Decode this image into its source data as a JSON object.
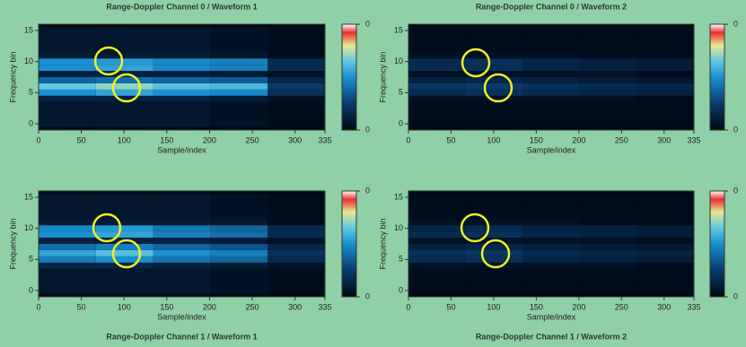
{
  "chart_data": [
    {
      "type": "heatmap",
      "title": "Range-Doppler Channel 0 / Waveform 1",
      "xlabel": "Sample/index",
      "ylabel": "Frequency bin",
      "xlim": [
        0,
        335
      ],
      "xticks": [
        0,
        50,
        100,
        150,
        200,
        250,
        300,
        335
      ],
      "ylim": [
        -1,
        16
      ],
      "yticks": [
        0,
        5,
        10,
        15
      ],
      "xbins": [
        0,
        67,
        134,
        201,
        268,
        335
      ],
      "y": [
        0,
        1,
        2,
        3,
        4,
        5,
        6,
        7,
        8,
        9,
        10,
        11,
        12,
        13,
        14,
        15
      ],
      "z": [
        [
          0.03,
          0.03,
          0.03,
          0.02,
          0.01
        ],
        [
          0.03,
          0.03,
          0.03,
          0.02,
          0.01
        ],
        [
          0.03,
          0.03,
          0.03,
          0.02,
          0.01
        ],
        [
          0.03,
          0.03,
          0.03,
          0.02,
          0.01
        ],
        [
          0.05,
          0.05,
          0.05,
          0.04,
          0.02
        ],
        [
          0.2,
          0.22,
          0.2,
          0.19,
          0.08
        ],
        [
          0.26,
          0.28,
          0.25,
          0.24,
          0.1
        ],
        [
          0.15,
          0.16,
          0.15,
          0.14,
          0.06
        ],
        [
          0.05,
          0.05,
          0.05,
          0.04,
          0.02
        ],
        [
          0.2,
          0.22,
          0.19,
          0.18,
          0.07
        ],
        [
          0.2,
          0.21,
          0.19,
          0.18,
          0.07
        ],
        [
          0.04,
          0.04,
          0.04,
          0.03,
          0.01
        ],
        [
          0.03,
          0.03,
          0.03,
          0.02,
          0.01
        ],
        [
          0.03,
          0.03,
          0.03,
          0.02,
          0.01
        ],
        [
          0.03,
          0.03,
          0.03,
          0.02,
          0.01
        ],
        [
          0.03,
          0.03,
          0.03,
          0.02,
          0.01
        ]
      ],
      "zlim": [
        0,
        0.4
      ],
      "zticks": [
        0,
        {
          "value": 0.4,
          "label": "0"
        }
      ]
    },
    {
      "type": "heatmap",
      "title": "Range-Doppler Channel 0 / Waveform 2",
      "xlabel": "Sample/index",
      "ylabel": "Frequency bin",
      "xlim": [
        0,
        335
      ],
      "xticks": [
        0,
        50,
        100,
        150,
        200,
        250,
        300,
        335
      ],
      "ylim": [
        -1,
        16
      ],
      "yticks": [
        0,
        5,
        10,
        15
      ],
      "xbins": [
        0,
        67,
        134,
        201,
        268,
        335
      ],
      "y": [
        0,
        1,
        2,
        3,
        4,
        5,
        6,
        7,
        8,
        9,
        10,
        11,
        12,
        13,
        14,
        15
      ],
      "z": [
        [
          0.01,
          0.01,
          0.01,
          0.01,
          0.01
        ],
        [
          0.01,
          0.01,
          0.01,
          0.01,
          0.01
        ],
        [
          0.01,
          0.01,
          0.01,
          0.01,
          0.01
        ],
        [
          0.01,
          0.01,
          0.01,
          0.01,
          0.01
        ],
        [
          0.02,
          0.02,
          0.02,
          0.02,
          0.01
        ],
        [
          0.07,
          0.08,
          0.07,
          0.06,
          0.05
        ],
        [
          0.09,
          0.1,
          0.08,
          0.07,
          0.06
        ],
        [
          0.05,
          0.06,
          0.05,
          0.04,
          0.03
        ],
        [
          0.02,
          0.02,
          0.02,
          0.02,
          0.01
        ],
        [
          0.07,
          0.08,
          0.06,
          0.05,
          0.04
        ],
        [
          0.07,
          0.08,
          0.06,
          0.05,
          0.04
        ],
        [
          0.02,
          0.02,
          0.02,
          0.01,
          0.01
        ],
        [
          0.01,
          0.01,
          0.01,
          0.01,
          0.01
        ],
        [
          0.01,
          0.01,
          0.01,
          0.01,
          0.01
        ],
        [
          0.01,
          0.01,
          0.01,
          0.01,
          0.01
        ],
        [
          0.01,
          0.01,
          0.01,
          0.01,
          0.01
        ]
      ],
      "zlim": [
        0,
        0.4
      ],
      "zticks": [
        0,
        {
          "value": 0.4,
          "label": "0"
        }
      ]
    },
    {
      "type": "heatmap",
      "title": "Range-Doppler Channel 1 / Waveform 1",
      "xlabel": "Sample/index",
      "ylabel": "Frequency bin",
      "xlim": [
        0,
        335
      ],
      "xticks": [
        0,
        50,
        100,
        150,
        200,
        250,
        300,
        335
      ],
      "ylim": [
        -1,
        16
      ],
      "yticks": [
        0,
        5,
        10,
        15
      ],
      "xbins": [
        0,
        67,
        134,
        201,
        268,
        335
      ],
      "y": [
        0,
        1,
        2,
        3,
        4,
        5,
        6,
        7,
        8,
        9,
        10,
        11,
        12,
        13,
        14,
        15
      ],
      "z": [
        [
          0.03,
          0.03,
          0.03,
          0.02,
          0.01
        ],
        [
          0.03,
          0.03,
          0.03,
          0.02,
          0.01
        ],
        [
          0.03,
          0.03,
          0.03,
          0.02,
          0.01
        ],
        [
          0.03,
          0.03,
          0.03,
          0.02,
          0.01
        ],
        [
          0.06,
          0.06,
          0.05,
          0.04,
          0.02
        ],
        [
          0.18,
          0.2,
          0.17,
          0.15,
          0.07
        ],
        [
          0.22,
          0.25,
          0.2,
          0.18,
          0.08
        ],
        [
          0.16,
          0.18,
          0.15,
          0.13,
          0.06
        ],
        [
          0.05,
          0.05,
          0.05,
          0.04,
          0.02
        ],
        [
          0.2,
          0.22,
          0.18,
          0.16,
          0.07
        ],
        [
          0.19,
          0.21,
          0.17,
          0.15,
          0.07
        ],
        [
          0.04,
          0.04,
          0.04,
          0.03,
          0.01
        ],
        [
          0.03,
          0.03,
          0.03,
          0.02,
          0.01
        ],
        [
          0.03,
          0.03,
          0.03,
          0.02,
          0.01
        ],
        [
          0.03,
          0.03,
          0.03,
          0.02,
          0.01
        ],
        [
          0.03,
          0.03,
          0.03,
          0.02,
          0.01
        ]
      ],
      "zlim": [
        0,
        0.4
      ],
      "zticks": [
        0,
        {
          "value": 0.4,
          "label": "0"
        }
      ]
    },
    {
      "type": "heatmap",
      "title": "Range-Doppler Channel 1 / Waveform 2",
      "xlabel": "Sample/index",
      "ylabel": "Frequency bin",
      "xlim": [
        0,
        335
      ],
      "xticks": [
        0,
        50,
        100,
        150,
        200,
        250,
        300,
        335
      ],
      "ylim": [
        -1,
        16
      ],
      "yticks": [
        0,
        5,
        10,
        15
      ],
      "xbins": [
        0,
        67,
        134,
        201,
        268,
        335
      ],
      "y": [
        0,
        1,
        2,
        3,
        4,
        5,
        6,
        7,
        8,
        9,
        10,
        11,
        12,
        13,
        14,
        15
      ],
      "z": [
        [
          0.01,
          0.01,
          0.01,
          0.01,
          0.01
        ],
        [
          0.01,
          0.01,
          0.01,
          0.01,
          0.01
        ],
        [
          0.01,
          0.01,
          0.01,
          0.01,
          0.01
        ],
        [
          0.01,
          0.01,
          0.01,
          0.01,
          0.01
        ],
        [
          0.02,
          0.02,
          0.02,
          0.02,
          0.01
        ],
        [
          0.07,
          0.08,
          0.06,
          0.05,
          0.04
        ],
        [
          0.08,
          0.09,
          0.07,
          0.06,
          0.05
        ],
        [
          0.05,
          0.06,
          0.05,
          0.04,
          0.03
        ],
        [
          0.02,
          0.02,
          0.02,
          0.02,
          0.01
        ],
        [
          0.07,
          0.08,
          0.06,
          0.05,
          0.04
        ],
        [
          0.06,
          0.07,
          0.05,
          0.05,
          0.04
        ],
        [
          0.02,
          0.02,
          0.02,
          0.01,
          0.01
        ],
        [
          0.01,
          0.01,
          0.01,
          0.01,
          0.01
        ],
        [
          0.01,
          0.01,
          0.01,
          0.01,
          0.01
        ],
        [
          0.01,
          0.01,
          0.01,
          0.01,
          0.01
        ],
        [
          0.01,
          0.01,
          0.01,
          0.01,
          0.01
        ]
      ],
      "zlim": [
        0,
        0.4
      ],
      "zticks": [
        0,
        {
          "value": 0.4,
          "label": "0"
        }
      ]
    }
  ]
}
